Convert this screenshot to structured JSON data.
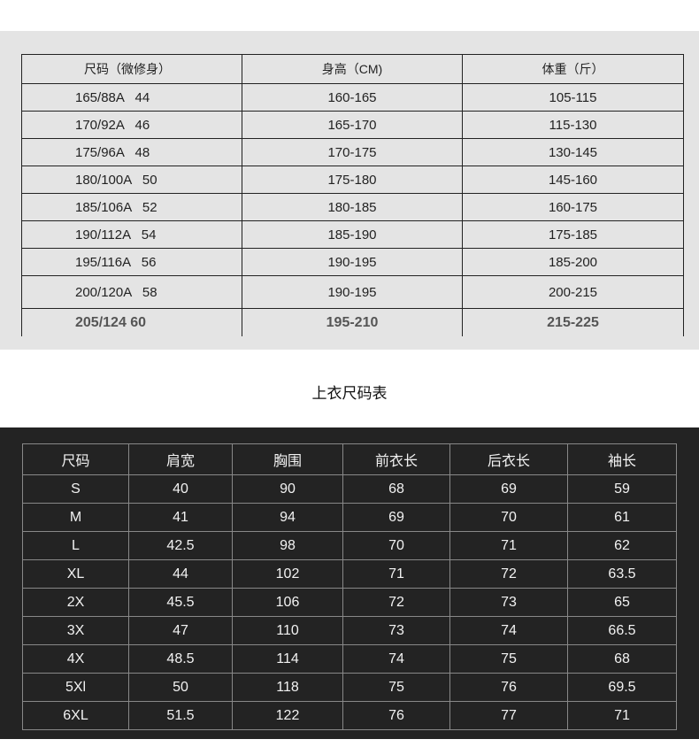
{
  "size_chart_top": {
    "headers": [
      "尺码（微修身）",
      "身高（CM)",
      "体重（斤）"
    ],
    "rows": [
      [
        "165/88A   44",
        "160-165",
        "105-115"
      ],
      [
        "170/92A   46",
        "165-170",
        "115-130"
      ],
      [
        "175/96A   48",
        "170-175",
        "130-145"
      ],
      [
        "180/100A   50",
        "175-180",
        "145-160"
      ],
      [
        "185/106A   52",
        "180-185",
        "160-175"
      ],
      [
        "190/112A   54",
        "185-190",
        "175-185"
      ],
      [
        "195/116A   56",
        "190-195",
        "185-200"
      ],
      [
        "200/120A   58",
        "190-195",
        "200-215"
      ],
      [
        "205/124 60",
        "195-210",
        "215-225"
      ]
    ]
  },
  "top_size_title": "上衣尺码表",
  "size_chart_bottom": {
    "headers": [
      "尺码",
      "肩宽",
      "胸围",
      "前衣长",
      "后衣长",
      "袖长"
    ],
    "rows": [
      [
        "S",
        "40",
        "90",
        "68",
        "69",
        "59"
      ],
      [
        "M",
        "41",
        "94",
        "69",
        "70",
        "61"
      ],
      [
        "L",
        "42.5",
        "98",
        "70",
        "71",
        "62"
      ],
      [
        "XL",
        "44",
        "102",
        "71",
        "72",
        "63.5"
      ],
      [
        "2X",
        "45.5",
        "106",
        "72",
        "73",
        "65"
      ],
      [
        "3X",
        "47",
        "110",
        "73",
        "74",
        "66.5"
      ],
      [
        "4X",
        "48.5",
        "114",
        "74",
        "75",
        "68"
      ],
      [
        "5Xl",
        "50",
        "118",
        "75",
        "76",
        "69.5"
      ],
      [
        "6XL",
        "51.5",
        "122",
        "76",
        "77",
        "71"
      ]
    ]
  },
  "colors": {
    "top_band": "#e4e4e4",
    "dark_band": "#232323"
  }
}
